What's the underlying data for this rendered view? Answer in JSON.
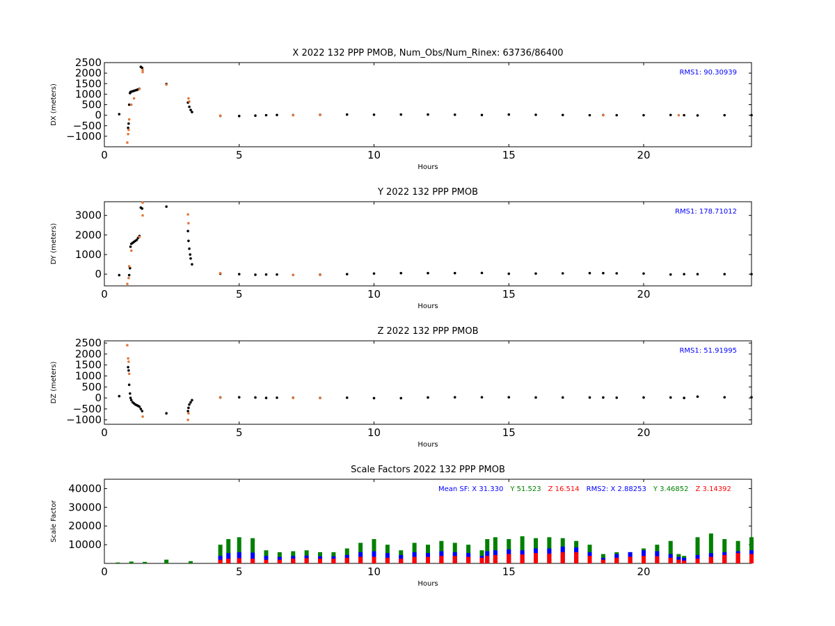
{
  "chart_data": [
    {
      "type": "scatter",
      "title": "X 2022 132 PPP  PMOB, Num_Obs/Num_Rinex: 63736/86400",
      "xlabel": "Hours",
      "ylabel": "DX (meters)",
      "xlim": [
        0,
        24
      ],
      "ylim": [
        -1500,
        2500
      ],
      "xticks": [
        0,
        5,
        10,
        15,
        20
      ],
      "yticks": [
        -1000,
        -500,
        0,
        500,
        1000,
        1500,
        2000,
        2500
      ],
      "annotation": "RMS1: 90.30939",
      "annotation_color": "#0000ff",
      "series": [
        {
          "color": "#000000",
          "x": [
            0.55,
            0.88,
            0.9,
            0.92,
            0.95,
            0.97,
            1.0,
            1.05,
            1.1,
            1.15,
            1.2,
            1.25,
            1.3,
            1.35,
            1.4,
            2.3,
            3.1,
            3.15,
            3.2,
            3.25,
            4.3,
            5,
            5.6,
            6,
            6.4,
            7,
            8,
            9,
            10,
            11,
            12,
            13,
            14,
            15,
            16,
            17,
            18,
            18.5,
            19,
            20,
            21,
            21.5,
            22,
            23,
            24
          ],
          "y": [
            50,
            -600,
            -400,
            500,
            1050,
            1100,
            1120,
            1140,
            1160,
            1180,
            1200,
            1230,
            1260,
            2300,
            2250,
            1480,
            600,
            400,
            250,
            150,
            -30,
            -40,
            -20,
            0,
            10,
            5,
            20,
            30,
            25,
            30,
            30,
            25,
            10,
            30,
            20,
            10,
            0,
            5,
            0,
            0,
            10,
            0,
            -10,
            0,
            0
          ]
        },
        {
          "color": "#e0783c",
          "x": [
            0.85,
            0.88,
            0.9,
            0.92,
            1.0,
            1.1,
            1.3,
            1.42,
            1.42,
            2.3,
            3.12,
            3.15,
            4.3,
            7,
            8,
            18.5,
            21.3
          ],
          "y": [
            -1300,
            -900,
            -700,
            -200,
            500,
            800,
            1250,
            2150,
            2050,
            1450,
            800,
            650,
            -20,
            0,
            10,
            0,
            0
          ]
        }
      ]
    },
    {
      "type": "scatter",
      "title": "Y 2022 132 PPP  PMOB",
      "xlabel": "Hours",
      "ylabel": "DY (meters)",
      "xlim": [
        0,
        24
      ],
      "ylim": [
        -600,
        3700
      ],
      "xticks": [
        0,
        5,
        10,
        15,
        20
      ],
      "yticks": [
        0,
        1000,
        2000,
        3000
      ],
      "annotation": "RMS1: 178.71012",
      "annotation_color": "#0000ff",
      "series": [
        {
          "color": "#000000",
          "x": [
            0.55,
            0.92,
            0.95,
            0.97,
            1.0,
            1.05,
            1.1,
            1.15,
            1.2,
            1.25,
            1.3,
            1.35,
            1.4,
            2.3,
            3.1,
            3.12,
            3.15,
            3.18,
            3.2,
            3.25,
            4.3,
            5,
            5.6,
            6,
            6.4,
            7,
            8,
            9,
            10,
            11,
            12,
            13,
            14,
            15,
            16,
            17,
            18,
            18.5,
            19,
            20,
            21,
            21.5,
            22,
            23,
            24
          ],
          "y": [
            -50,
            -50,
            300,
            1400,
            1550,
            1600,
            1650,
            1700,
            1750,
            1850,
            1950,
            3400,
            3350,
            3450,
            2200,
            1700,
            1300,
            1000,
            800,
            500,
            20,
            0,
            -30,
            -20,
            -20,
            -40,
            -30,
            0,
            30,
            50,
            50,
            50,
            60,
            20,
            30,
            40,
            50,
            50,
            40,
            30,
            -20,
            0,
            0,
            0,
            0
          ]
        },
        {
          "color": "#e0783c",
          "x": [
            0.85,
            0.9,
            0.92,
            1.0,
            1.3,
            1.42,
            1.42,
            3.1,
            3.12,
            4.3,
            7,
            8
          ],
          "y": [
            -500,
            -200,
            400,
            1200,
            1900,
            3650,
            3000,
            3050,
            2600,
            50,
            -40,
            -40
          ]
        }
      ]
    },
    {
      "type": "scatter",
      "title": "Z 2022 132 PPP  PMOB",
      "xlabel": "Hours",
      "ylabel": "DZ (meters)",
      "xlim": [
        0,
        24
      ],
      "ylim": [
        -1200,
        2600
      ],
      "xticks": [
        0,
        5,
        10,
        15,
        20
      ],
      "yticks": [
        -1000,
        -500,
        0,
        500,
        1000,
        1500,
        2000,
        2500
      ],
      "annotation": "RMS1: 51.91995",
      "annotation_color": "#0000ff",
      "series": [
        {
          "color": "#000000",
          "x": [
            0.55,
            0.88,
            0.9,
            0.92,
            0.95,
            0.97,
            1.0,
            1.05,
            1.1,
            1.15,
            1.2,
            1.25,
            1.3,
            1.35,
            1.4,
            2.3,
            3.1,
            3.12,
            3.15,
            3.2,
            3.25,
            4.3,
            5,
            5.6,
            6,
            6.4,
            7,
            8,
            9,
            10,
            11,
            12,
            13,
            14,
            15,
            16,
            17,
            18,
            18.5,
            19,
            20,
            21,
            21.5,
            22,
            23,
            24
          ],
          "y": [
            80,
            1400,
            1250,
            600,
            200,
            0,
            -100,
            -200,
            -250,
            -300,
            -330,
            -360,
            -400,
            -500,
            -600,
            -700,
            -600,
            -450,
            -300,
            -200,
            -100,
            20,
            30,
            20,
            0,
            10,
            10,
            0,
            10,
            -10,
            -10,
            20,
            30,
            30,
            30,
            20,
            20,
            20,
            20,
            10,
            20,
            20,
            0,
            60,
            30,
            30
          ]
        },
        {
          "color": "#e0783c",
          "x": [
            0.85,
            0.88,
            0.9,
            0.92,
            1.42,
            3.1,
            3.12,
            4.3,
            7,
            8
          ],
          "y": [
            2400,
            1800,
            1650,
            1100,
            -850,
            -1000,
            -700,
            10,
            0,
            0
          ]
        }
      ]
    },
    {
      "type": "scatter",
      "title": "Scale Factors 2022 132 PPP  PMOB",
      "xlabel": "Hours",
      "ylabel": "Scale Factor",
      "xlim": [
        0,
        24
      ],
      "ylim": [
        0,
        45000
      ],
      "xticks": [
        0,
        5,
        10,
        15,
        20
      ],
      "yticks": [
        10000,
        20000,
        30000,
        40000
      ],
      "legend": [
        {
          "text": "Mean SF: X  31.330",
          "color": "#0000ff"
        },
        {
          "text": "Y  51.523",
          "color": "#008000"
        },
        {
          "text": "Z  16.514",
          "color": "#ff0000"
        },
        {
          "text": "RMS2: X  2.88253",
          "color": "#0000ff"
        },
        {
          "text": "Y  3.46852",
          "color": "#008000"
        },
        {
          "text": "Z  3.14392",
          "color": "#ff0000"
        }
      ],
      "series": [
        {
          "color": "#008000",
          "x": [
            0.5,
            1.0,
            1.5,
            2.3,
            3.2,
            4.3,
            4.6,
            5.0,
            5.5,
            6.0,
            6.5,
            7.0,
            7.5,
            8.0,
            8.5,
            9.0,
            9.5,
            10.0,
            10.5,
            11.0,
            11.5,
            12.0,
            12.5,
            13.0,
            13.5,
            14.0,
            14.2,
            14.5,
            15.0,
            15.5,
            16.0,
            16.5,
            17.0,
            17.5,
            18.0,
            18.5,
            19.0,
            19.5,
            20.0,
            20.5,
            21.0,
            21.3,
            21.5,
            22.0,
            22.5,
            23.0,
            23.5,
            24.0
          ],
          "y": [
            500,
            1000,
            800,
            2000,
            1200,
            10000,
            13000,
            14000,
            13500,
            7000,
            6000,
            6500,
            7000,
            6000,
            6000,
            8000,
            11000,
            13000,
            10000,
            7000,
            11000,
            10000,
            12000,
            11000,
            10000,
            7000,
            13000,
            14000,
            13000,
            14500,
            13500,
            14000,
            13500,
            12000,
            10000,
            5000,
            6000,
            6000,
            8000,
            10000,
            12000,
            5000,
            4000,
            14000,
            16000,
            13000,
            12000,
            14000
          ]
        },
        {
          "color": "#0000ff",
          "x": [
            4.3,
            4.6,
            5.0,
            5.5,
            6.0,
            6.5,
            7.0,
            7.5,
            8.0,
            8.5,
            9.0,
            9.5,
            10.0,
            10.5,
            11.0,
            11.5,
            12.0,
            12.5,
            13.0,
            13.5,
            14.0,
            14.2,
            14.5,
            15.0,
            15.5,
            16.0,
            16.5,
            17.0,
            17.5,
            18.0,
            18.5,
            19.0,
            19.5,
            20.0,
            20.5,
            21.0,
            21.3,
            21.5,
            22.0,
            22.5,
            23.0,
            23.5,
            24.0
          ],
          "y": [
            4000,
            5500,
            6000,
            5800,
            4000,
            3500,
            4000,
            4200,
            3800,
            3800,
            4500,
            6000,
            6500,
            5500,
            4500,
            6000,
            5500,
            6500,
            6000,
            5500,
            4000,
            6500,
            7000,
            7500,
            7000,
            8000,
            8000,
            9000,
            8500,
            6000,
            3000,
            5000,
            6000,
            7000,
            6500,
            5000,
            3500,
            3000,
            4500,
            5500,
            6000,
            6500,
            7000
          ]
        },
        {
          "color": "#ff0000",
          "x": [
            4.3,
            4.6,
            5.0,
            5.5,
            6.0,
            6.5,
            7.0,
            7.5,
            8.0,
            8.5,
            9.0,
            9.5,
            10.0,
            10.5,
            11.0,
            11.5,
            12.0,
            12.5,
            13.0,
            13.5,
            14.0,
            14.2,
            14.5,
            15.0,
            15.5,
            16.0,
            16.5,
            17.0,
            17.5,
            18.0,
            18.5,
            19.0,
            19.5,
            20.0,
            20.5,
            21.0,
            21.3,
            21.5,
            22.0,
            22.5,
            23.0,
            23.5,
            24.0
          ],
          "y": [
            2000,
            2500,
            2800,
            2500,
            2000,
            2000,
            2500,
            2800,
            2500,
            2500,
            3000,
            3500,
            3500,
            3000,
            2500,
            3500,
            3500,
            4000,
            4000,
            3500,
            3000,
            4000,
            4500,
            5000,
            4800,
            5500,
            5200,
            6000,
            6000,
            4000,
            2000,
            3000,
            3500,
            4000,
            3800,
            3000,
            2000,
            1500,
            2500,
            3500,
            4500,
            5500,
            5000
          ]
        }
      ]
    }
  ]
}
